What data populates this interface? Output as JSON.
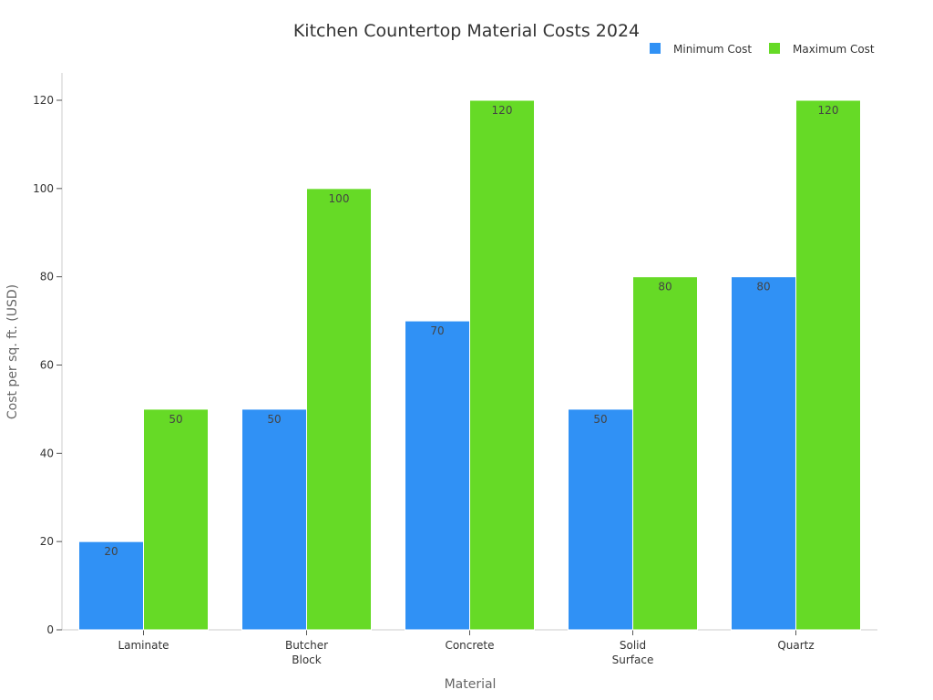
{
  "chart_data": {
    "type": "bar",
    "title": "Kitchen Countertop Material Costs 2024",
    "xlabel": "Material",
    "ylabel": "Cost per sq. ft. (USD)",
    "categories": [
      [
        "Laminate"
      ],
      [
        "Butcher",
        "Block"
      ],
      [
        "Concrete"
      ],
      [
        "Solid",
        "Surface"
      ],
      [
        "Quartz"
      ]
    ],
    "series": [
      {
        "name": "Minimum Cost",
        "color": "#3091F5",
        "values": [
          20,
          50,
          70,
          50,
          80
        ]
      },
      {
        "name": "Maximum Cost",
        "color": "#66DA26",
        "values": [
          50,
          100,
          120,
          80,
          120
        ]
      }
    ],
    "ylim": [
      0,
      120
    ],
    "yticks": [
      0,
      20,
      40,
      60,
      80,
      100,
      120
    ],
    "grid": false,
    "legend": "top-right",
    "data_labels": true
  }
}
